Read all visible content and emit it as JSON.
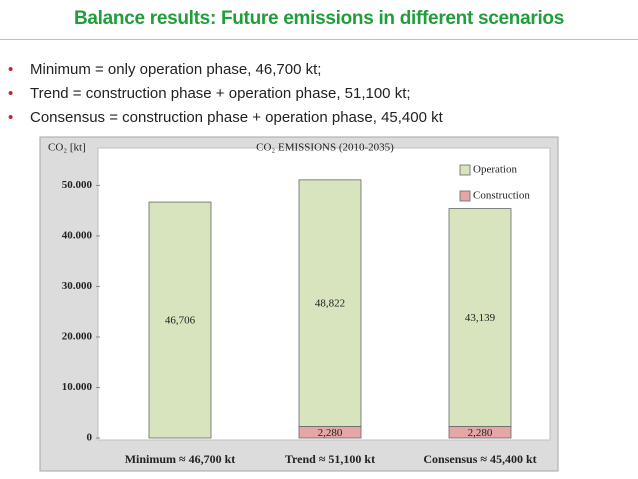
{
  "slide_title": "Balance results: Future emissions in different scenarios",
  "bullets": [
    "Minimum = only operation phase, 46,700 kt;",
    "Trend = construction phase + operation phase, 51,100 kt;",
    "Consensus = construction phase + operation phase, 45,400 kt"
  ],
  "chart_data": {
    "type": "bar",
    "stacked": true,
    "title": "CO₂ EMISSIONS (2010-2035)",
    "y_label": "CO₂ [kt]",
    "categories": [
      "Minimum ≈ 46,700 kt",
      "Trend ≈ 51,100 kt",
      "Consensus ≈ 45,400 kt"
    ],
    "series": [
      {
        "name": "Operation",
        "color": "#d7e4bd",
        "values": [
          46706,
          48822,
          43139
        ],
        "value_labels": [
          "46,706",
          "48,822",
          "43,139"
        ]
      },
      {
        "name": "Construction",
        "color": "#e6a6a6",
        "values": [
          null,
          2280,
          2280
        ],
        "value_labels": [
          null,
          "2,280",
          "2,280"
        ]
      }
    ],
    "ylim": [
      0,
      58000
    ],
    "yticks": [
      0,
      {
        "value": 10000,
        "label": "10.000"
      },
      {
        "value": 20000,
        "label": "20.000"
      },
      {
        "value": 30000,
        "label": "30.000"
      },
      {
        "value": 40000,
        "label": "40.000"
      },
      {
        "value": 50000,
        "label": "50.000"
      }
    ],
    "legend": "top-right"
  }
}
